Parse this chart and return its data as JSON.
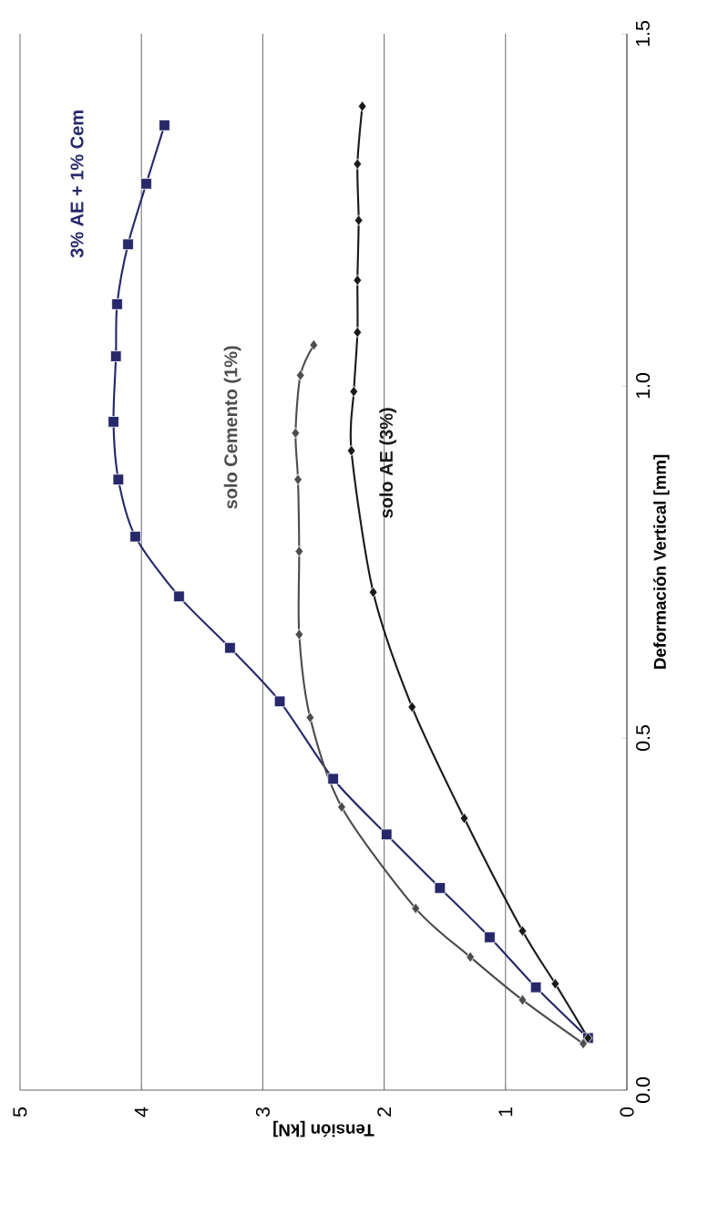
{
  "chart_data": {
    "type": "line",
    "xlabel": "Tensión [kN]",
    "ylabel": "Deformación Vertical [mm]",
    "xlim": [
      5,
      0
    ],
    "ylim": [
      0,
      1.5
    ],
    "xticks": [
      0,
      1,
      2,
      3,
      4,
      5
    ],
    "yticks": [
      {
        "value": 0,
        "label": "0.0"
      },
      {
        "value": 0.5,
        "label": "0.5"
      },
      {
        "value": 1,
        "label": "1.0"
      },
      {
        "value": 1.5,
        "label": "1.5"
      }
    ],
    "grid": "x",
    "legend": false,
    "line_style": "solid",
    "series": [
      {
        "name": "3% AE + 1% Cem",
        "color": "#27286a",
        "marker": "square",
        "x": [
          0.32,
          0.75,
          1.13,
          1.54,
          1.98,
          2.42,
          2.86,
          3.27,
          3.69,
          4.05,
          4.19,
          4.23,
          4.21,
          4.2,
          4.11,
          3.96,
          3.81
        ],
        "values": [
          0.074,
          0.146,
          0.217,
          0.287,
          0.363,
          0.442,
          0.552,
          0.628,
          0.701,
          0.786,
          0.867,
          0.949,
          1.042,
          1.116,
          1.201,
          1.287,
          1.37
        ]
      },
      {
        "name": "solo Cemento (1%)",
        "color": "#4d4d4d",
        "marker": "diamond",
        "x": [
          0.36,
          0.86,
          1.29,
          1.74,
          2.35,
          2.61,
          2.7,
          2.7,
          2.71,
          2.73,
          2.69,
          2.58
        ],
        "values": [
          0.066,
          0.128,
          0.189,
          0.258,
          0.402,
          0.529,
          0.647,
          0.765,
          0.867,
          0.933,
          1.015,
          1.058
        ]
      },
      {
        "name": "solo AE (3%)",
        "color": "#1a1a1a",
        "marker": "diamond",
        "x": [
          0.32,
          0.59,
          0.86,
          1.34,
          1.77,
          2.09,
          2.27,
          2.25,
          2.22,
          2.22,
          2.21,
          2.22,
          2.18
        ],
        "values": [
          0.074,
          0.151,
          0.226,
          0.386,
          0.544,
          0.707,
          0.908,
          0.992,
          1.076,
          1.15,
          1.235,
          1.315,
          1.397
        ]
      }
    ]
  }
}
